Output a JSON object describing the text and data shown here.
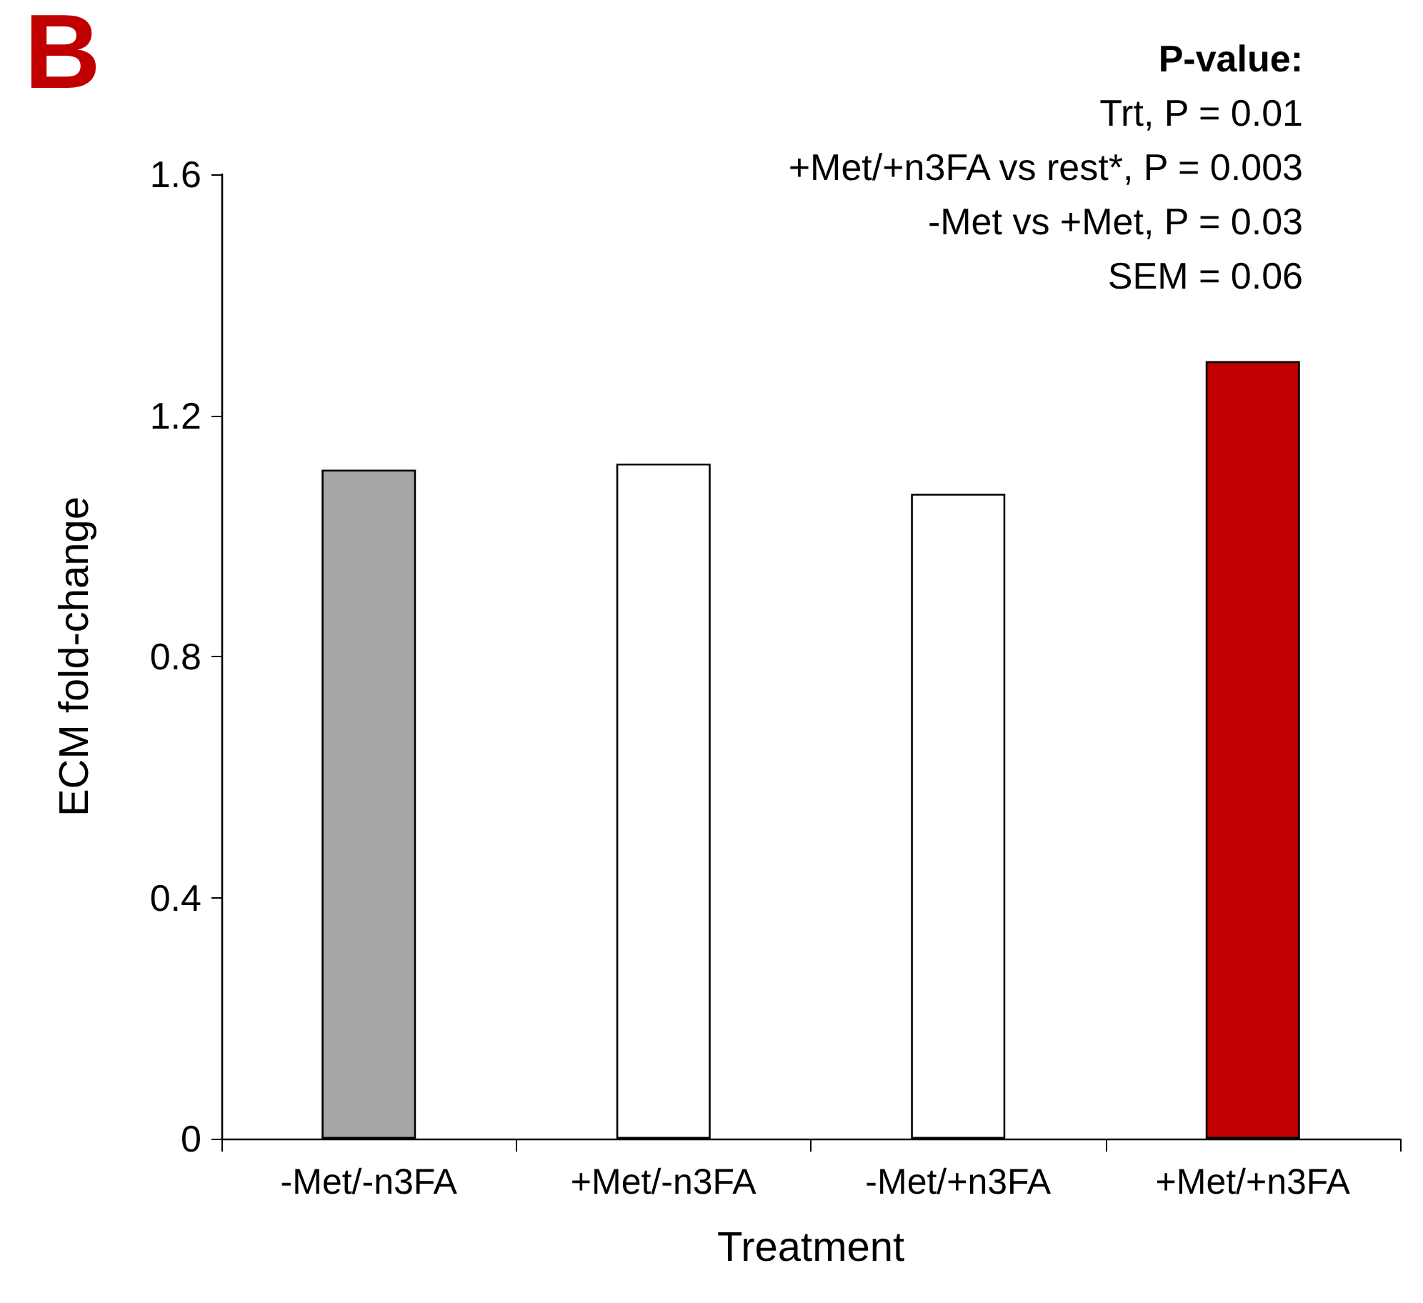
{
  "chart_data": {
    "type": "bar",
    "title": "B",
    "xlabel": "Treatment",
    "ylabel": "ECM fold-change",
    "categories": [
      "-Met/-n3FA",
      "+Met/-n3FA",
      "-Met/+n3FA",
      "+Met/+n3FA"
    ],
    "values": [
      1.11,
      1.12,
      1.07,
      1.29
    ],
    "colors": [
      "#a6a6a6",
      "#ffffff",
      "#ffffff",
      "#c00000"
    ],
    "ylim": [
      0,
      1.6
    ],
    "yticks": [
      0,
      0.4,
      0.8,
      1.2,
      1.6
    ],
    "annotations": [
      "P-value:",
      "Trt, P = 0.01",
      "+Met/+n3FA vs rest*, P = 0.003",
      "-Met vs +Met, P = 0.03",
      "SEM = 0.06"
    ]
  }
}
